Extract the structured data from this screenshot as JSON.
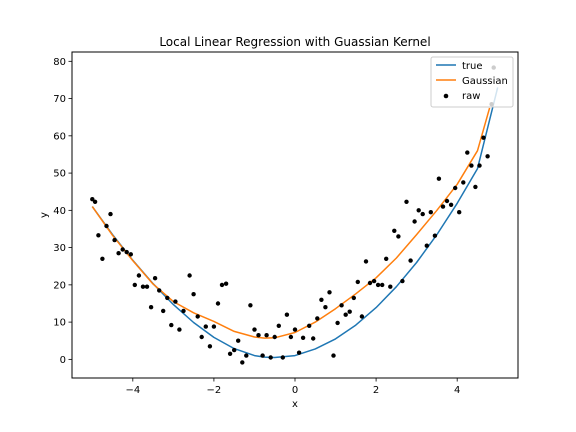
{
  "chart_data": {
    "type": "line",
    "title": "Local Linear Regression with Guassian Kernel",
    "xlabel": "x",
    "ylabel": "y",
    "xlim": [
      -5.5,
      5.5
    ],
    "ylim": [
      -5,
      82.5
    ],
    "xticks": [
      -4,
      -2,
      0,
      2,
      4
    ],
    "yticks": [
      0,
      10,
      20,
      30,
      40,
      50,
      60,
      70,
      80
    ],
    "grid": false,
    "legend_position": "top-right",
    "series": [
      {
        "name": "true",
        "kind": "line",
        "color": "#1f77b4",
        "x": [
          -5.0,
          -4.5,
          -4.0,
          -3.5,
          -3.0,
          -2.5,
          -2.0,
          -1.5,
          -1.0,
          -0.75,
          -0.5,
          0.0,
          0.5,
          1.0,
          1.5,
          2.0,
          2.5,
          3.0,
          3.5,
          4.0,
          4.5,
          5.0
        ],
        "y": [
          41.0,
          33.5,
          26.6,
          20.3,
          14.7,
          9.9,
          5.9,
          2.9,
          1.0,
          0.6,
          0.5,
          1.0,
          2.8,
          5.5,
          9.2,
          13.9,
          19.5,
          26.0,
          33.5,
          41.9,
          51.2,
          73.0
        ]
      },
      {
        "name": "Gaussian",
        "kind": "line",
        "color": "#ff7f0e",
        "x": [
          -5.0,
          -4.5,
          -4.0,
          -3.5,
          -3.0,
          -2.5,
          -2.0,
          -1.5,
          -1.0,
          -0.75,
          -0.5,
          0.0,
          0.5,
          1.0,
          1.5,
          2.0,
          2.5,
          3.0,
          3.5,
          4.0,
          4.5,
          4.8
        ],
        "y": [
          41.0,
          33.3,
          26.5,
          20.2,
          15.5,
          12.5,
          10.2,
          7.5,
          6.0,
          5.7,
          5.8,
          7.2,
          10.0,
          13.6,
          17.6,
          21.9,
          27.2,
          33.5,
          40.0,
          47.0,
          56.0,
          67.5
        ]
      },
      {
        "name": "raw",
        "kind": "scatter",
        "color": "#000000",
        "x": [
          -5.0,
          -4.93,
          -4.85,
          -4.75,
          -4.65,
          -4.55,
          -4.45,
          -4.35,
          -4.25,
          -4.15,
          -4.05,
          -3.95,
          -3.85,
          -3.75,
          -3.65,
          -3.55,
          -3.45,
          -3.35,
          -3.25,
          -3.15,
          -3.05,
          -2.95,
          -2.85,
          -2.75,
          -2.6,
          -2.5,
          -2.4,
          -2.3,
          -2.2,
          -2.1,
          -2.0,
          -1.9,
          -1.8,
          -1.7,
          -1.6,
          -1.5,
          -1.4,
          -1.3,
          -1.2,
          -1.1,
          -1.0,
          -0.9,
          -0.8,
          -0.7,
          -0.6,
          -0.5,
          -0.4,
          -0.3,
          -0.2,
          -0.1,
          0.0,
          0.1,
          0.2,
          0.35,
          0.45,
          0.55,
          0.65,
          0.75,
          0.85,
          0.95,
          1.05,
          1.15,
          1.25,
          1.35,
          1.45,
          1.55,
          1.65,
          1.75,
          1.85,
          1.95,
          2.05,
          2.15,
          2.25,
          2.35,
          2.45,
          2.55,
          2.65,
          2.75,
          2.85,
          2.95,
          3.05,
          3.15,
          3.25,
          3.35,
          3.45,
          3.55,
          3.65,
          3.75,
          3.85,
          3.95,
          4.05,
          4.15,
          4.25,
          4.35,
          4.45,
          4.55,
          4.65,
          4.75,
          4.85,
          4.9
        ],
        "y": [
          43.0,
          42.3,
          33.3,
          27.0,
          35.8,
          39.0,
          32.0,
          28.5,
          29.5,
          28.8,
          28.2,
          20.0,
          22.5,
          19.5,
          19.5,
          14.0,
          21.8,
          18.5,
          13.0,
          16.5,
          9.2,
          15.5,
          8.0,
          13.0,
          22.5,
          17.5,
          11.5,
          6.0,
          8.8,
          3.5,
          8.8,
          15.0,
          20.0,
          20.3,
          1.5,
          2.5,
          5.0,
          -0.8,
          1.0,
          14.5,
          8.0,
          6.5,
          1.0,
          6.5,
          0.5,
          6.0,
          9.0,
          0.5,
          12.0,
          6.0,
          8.0,
          1.8,
          5.8,
          9.0,
          5.6,
          11.0,
          16.0,
          14.0,
          18.0,
          1.0,
          9.8,
          14.5,
          12.0,
          12.8,
          16.5,
          20.8,
          11.5,
          26.3,
          20.5,
          21.0,
          20.0,
          20.0,
          27.0,
          19.5,
          34.5,
          33.0,
          21.0,
          42.3,
          26.5,
          37.0,
          40.0,
          39.0,
          30.5,
          39.5,
          33.2,
          48.5,
          41.0,
          42.5,
          41.5,
          46.0,
          39.5,
          47.5,
          55.5,
          52.0,
          46.3,
          52.0,
          59.5,
          54.5,
          68.5,
          78.3
        ]
      }
    ]
  }
}
